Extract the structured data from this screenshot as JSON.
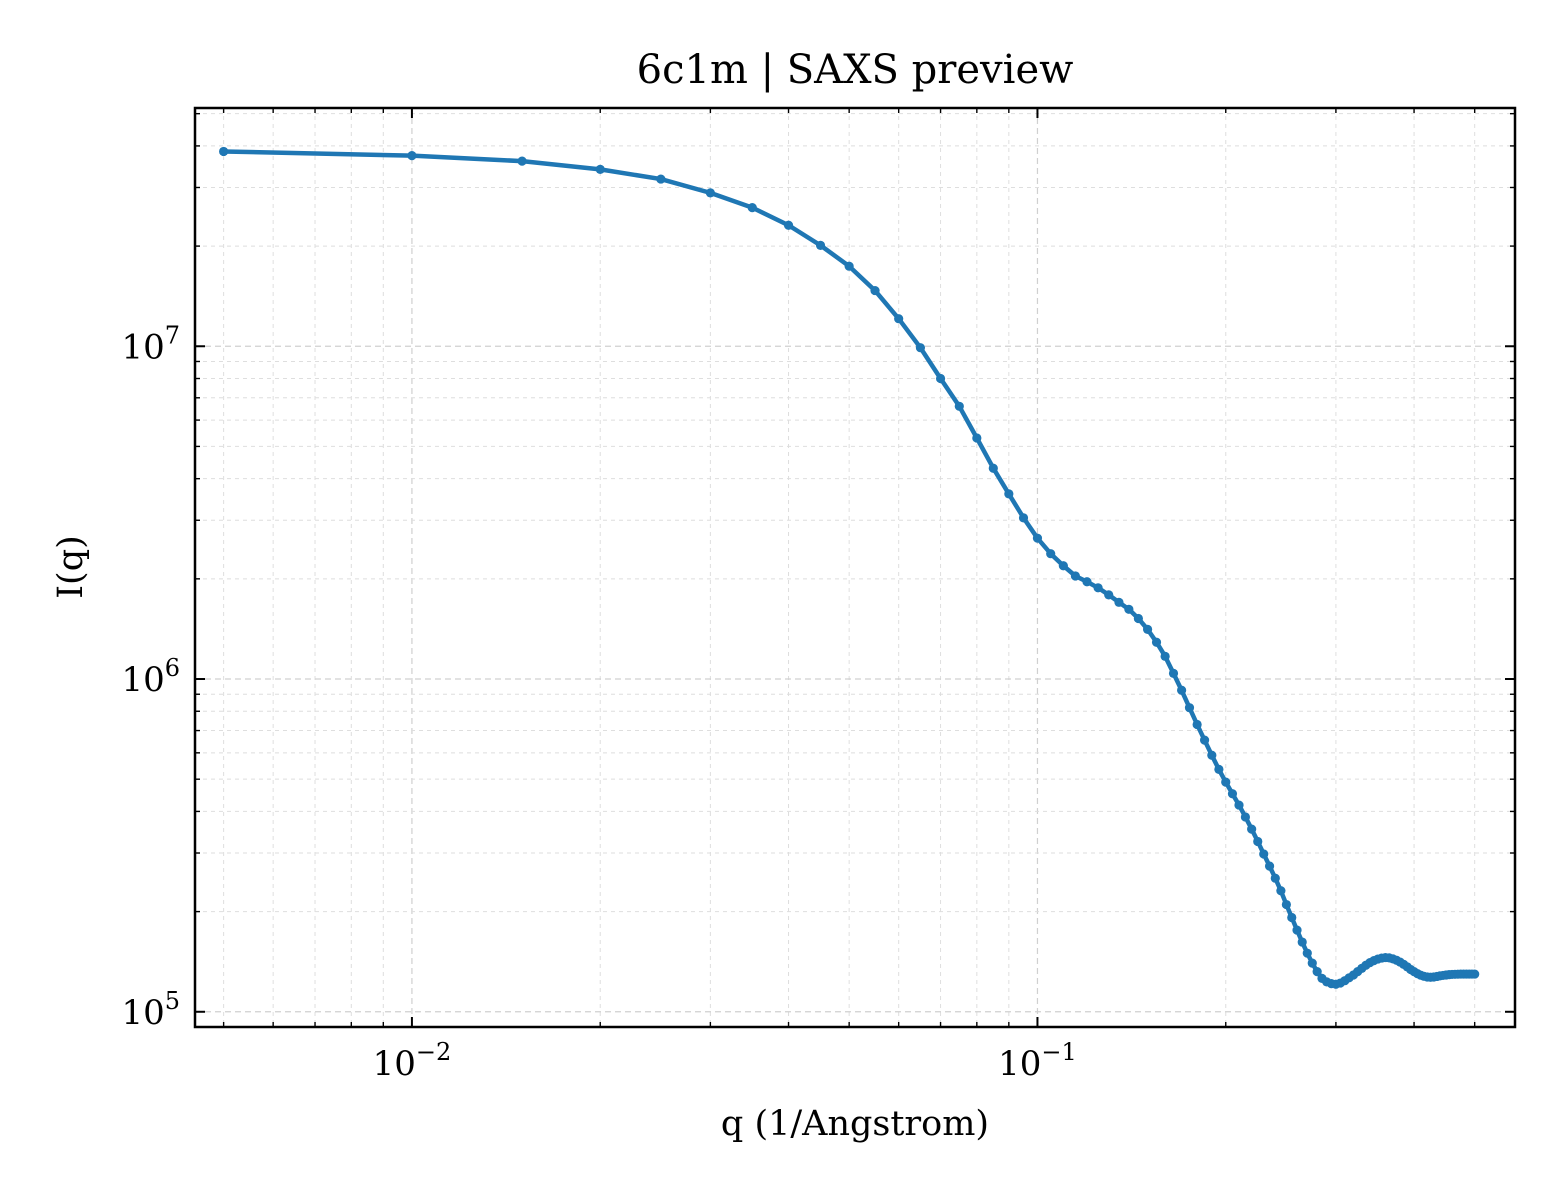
{
  "chart_data": {
    "type": "line",
    "title": "6c1m | SAXS preview",
    "xlabel": "q (1/Angstrom)",
    "ylabel": "I(q)",
    "xscale": "log",
    "yscale": "log",
    "xlim": [
      0.0045,
      0.58
    ],
    "ylim": [
      90000,
      52000000
    ],
    "grid": "on (major and minor, dashed)",
    "x_ticks": [
      {
        "value": 0.01,
        "base": "10",
        "exp": "−2"
      },
      {
        "value": 0.1,
        "base": "10",
        "exp": "−1"
      }
    ],
    "y_ticks": [
      {
        "value": 100000,
        "base": "10",
        "exp": "5"
      },
      {
        "value": 1000000,
        "base": "10",
        "exp": "6"
      },
      {
        "value": 10000000,
        "base": "10",
        "exp": "7"
      }
    ],
    "series": [
      {
        "color": "#1f77b4",
        "x": [
          0.005,
          0.01,
          0.015,
          0.02,
          0.025,
          0.03,
          0.035,
          0.04,
          0.045,
          0.05,
          0.055,
          0.06,
          0.065,
          0.07,
          0.075,
          0.08,
          0.085,
          0.09,
          0.095,
          0.1,
          0.105,
          0.11,
          0.115,
          0.12,
          0.125,
          0.13,
          0.135,
          0.14,
          0.145,
          0.15,
          0.155,
          0.16,
          0.165,
          0.17,
          0.175,
          0.18,
          0.185,
          0.19,
          0.195,
          0.2,
          0.205,
          0.21,
          0.215,
          0.22,
          0.225,
          0.23,
          0.235,
          0.24,
          0.245,
          0.25,
          0.255,
          0.26,
          0.265,
          0.27,
          0.275,
          0.28,
          0.285,
          0.29,
          0.295,
          0.3,
          0.305,
          0.31,
          0.315,
          0.32,
          0.325,
          0.33,
          0.335,
          0.34,
          0.345,
          0.35,
          0.355,
          0.36,
          0.365,
          0.37,
          0.375,
          0.38,
          0.385,
          0.39,
          0.395,
          0.4,
          0.405,
          0.41,
          0.415,
          0.42,
          0.425,
          0.43,
          0.435,
          0.44,
          0.445,
          0.45,
          0.455,
          0.46,
          0.465,
          0.47,
          0.475,
          0.48,
          0.485,
          0.49,
          0.495,
          0.5
        ],
        "y": [
          38500000,
          37400000,
          36000000,
          34000000,
          31800000,
          28900000,
          26100000,
          23100000,
          20100000,
          17400000,
          14700000,
          12100000,
          9900000,
          8000000,
          6600000,
          5300000,
          4300000,
          3600000,
          3050000,
          2650000,
          2380000,
          2190000,
          2040000,
          1960000,
          1880000,
          1790000,
          1700000,
          1620000,
          1520000,
          1410000,
          1290000,
          1170000,
          1040000,
          925000,
          820000,
          730000,
          655000,
          590000,
          535000,
          490000,
          452000,
          418000,
          385000,
          354000,
          325000,
          298000,
          274000,
          252000,
          231000,
          210000,
          192000,
          176000,
          162000,
          150000,
          140000,
          132000,
          126000,
          123000,
          121500,
          121000,
          122000,
          124000,
          126500,
          129000,
          132000,
          135000,
          138000,
          140500,
          142500,
          144000,
          145000,
          145500,
          145200,
          144200,
          142800,
          141000,
          138800,
          136500,
          134000,
          132000,
          130200,
          128800,
          127800,
          127200,
          127000,
          127200,
          127700,
          128200,
          128600,
          129000,
          129300,
          129500,
          129600,
          129700,
          129800,
          129800,
          129800,
          129800,
          129800,
          129800
        ]
      }
    ]
  }
}
